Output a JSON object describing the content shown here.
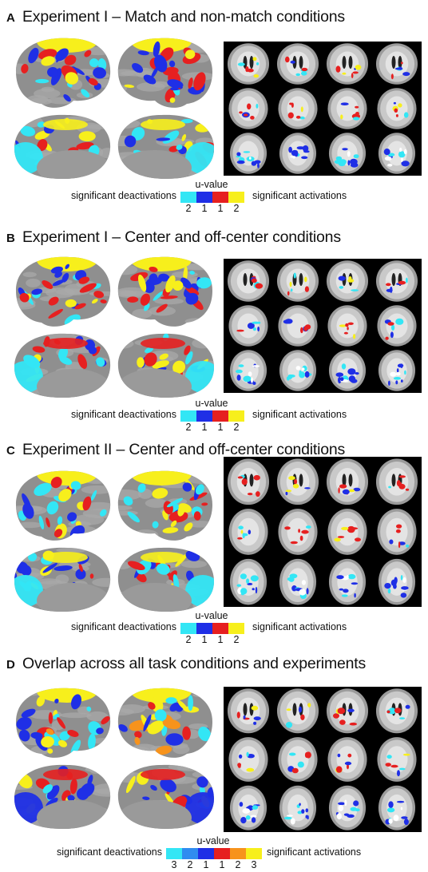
{
  "panels": [
    {
      "letter": "A",
      "title": "Experiment I – Match and non-match conditions",
      "legend": {
        "title": "u-value",
        "left_label": "significant deactivations",
        "right_label": "significant activations",
        "colors": [
          "#33e6f5",
          "#1f2fe6",
          "#e62020",
          "#f7ef1c"
        ],
        "ticks": [
          "2",
          "1",
          "1",
          "2"
        ]
      }
    },
    {
      "letter": "B",
      "title": "Experiment I – Center and off-center conditions",
      "legend": {
        "title": "u-value",
        "left_label": "significant deactivations",
        "right_label": "significant activations",
        "colors": [
          "#33e6f5",
          "#1f2fe6",
          "#e62020",
          "#f7ef1c"
        ],
        "ticks": [
          "2",
          "1",
          "1",
          "2"
        ]
      }
    },
    {
      "letter": "C",
      "title": "Experiment II – Center and off-center conditions",
      "legend": {
        "title": "u-value",
        "left_label": "significant deactivations",
        "right_label": "significant activations",
        "colors": [
          "#33e6f5",
          "#1f2fe6",
          "#e62020",
          "#f7ef1c"
        ],
        "ticks": [
          "2",
          "1",
          "1",
          "2"
        ]
      }
    },
    {
      "letter": "D",
      "title": "Overlap across all task conditions and experiments",
      "legend": {
        "title": "u-value",
        "left_label": "significant deactivations",
        "right_label": "significant activations",
        "colors": [
          "#33e6f5",
          "#2f8cf0",
          "#1f2fe6",
          "#e62020",
          "#f7931c",
          "#f7ef1c"
        ],
        "ticks": [
          "3",
          "2",
          "1",
          "1",
          "2",
          "3"
        ]
      }
    }
  ]
}
